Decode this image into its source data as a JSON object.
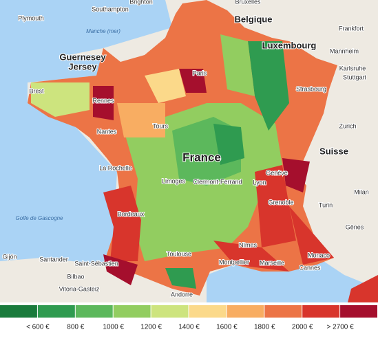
{
  "map": {
    "places": [
      "Plymouth",
      "Southampton",
      "Brighton",
      "Bruxelles",
      "Belgique",
      "Manche (mer)",
      "Guernesey",
      "Jersey",
      "Frankfort",
      "Luxembourg",
      "Mannheim",
      "Karlsruhe",
      "Stuttgart",
      "Paris",
      "Brest",
      "Rennes",
      "Strasbourg",
      "Nantes",
      "Tours",
      "Zurich",
      "Suisse",
      "France",
      "La Rochelle",
      "Genève",
      "Limoges",
      "Clermont-Ferrand",
      "Lyon",
      "Milan",
      "Turin",
      "Grenoble",
      "Golfe de Gascogne",
      "Bordeaux",
      "Gênes",
      "Nîmes",
      "Gijón",
      "Santander",
      "Saint-Sébastien",
      "Toulouse",
      "Montpellier",
      "Marseille",
      "Monaco",
      "Bilbao",
      "Cannes",
      "Vitoria-Gasteiz",
      "Andorre"
    ]
  },
  "legend": {
    "colors": [
      "#1a7b3c",
      "#2f9b50",
      "#5cb85c",
      "#92cd60",
      "#cde47e",
      "#fbd98a",
      "#f8ad62",
      "#ec7446",
      "#d8352c",
      "#a50f2d"
    ],
    "labels": [
      "< 600 €",
      "800 €",
      "1000 €",
      "1200 €",
      "1400 €",
      "1600 €",
      "1800 €",
      "2000 €",
      "> 2700 €"
    ]
  }
}
